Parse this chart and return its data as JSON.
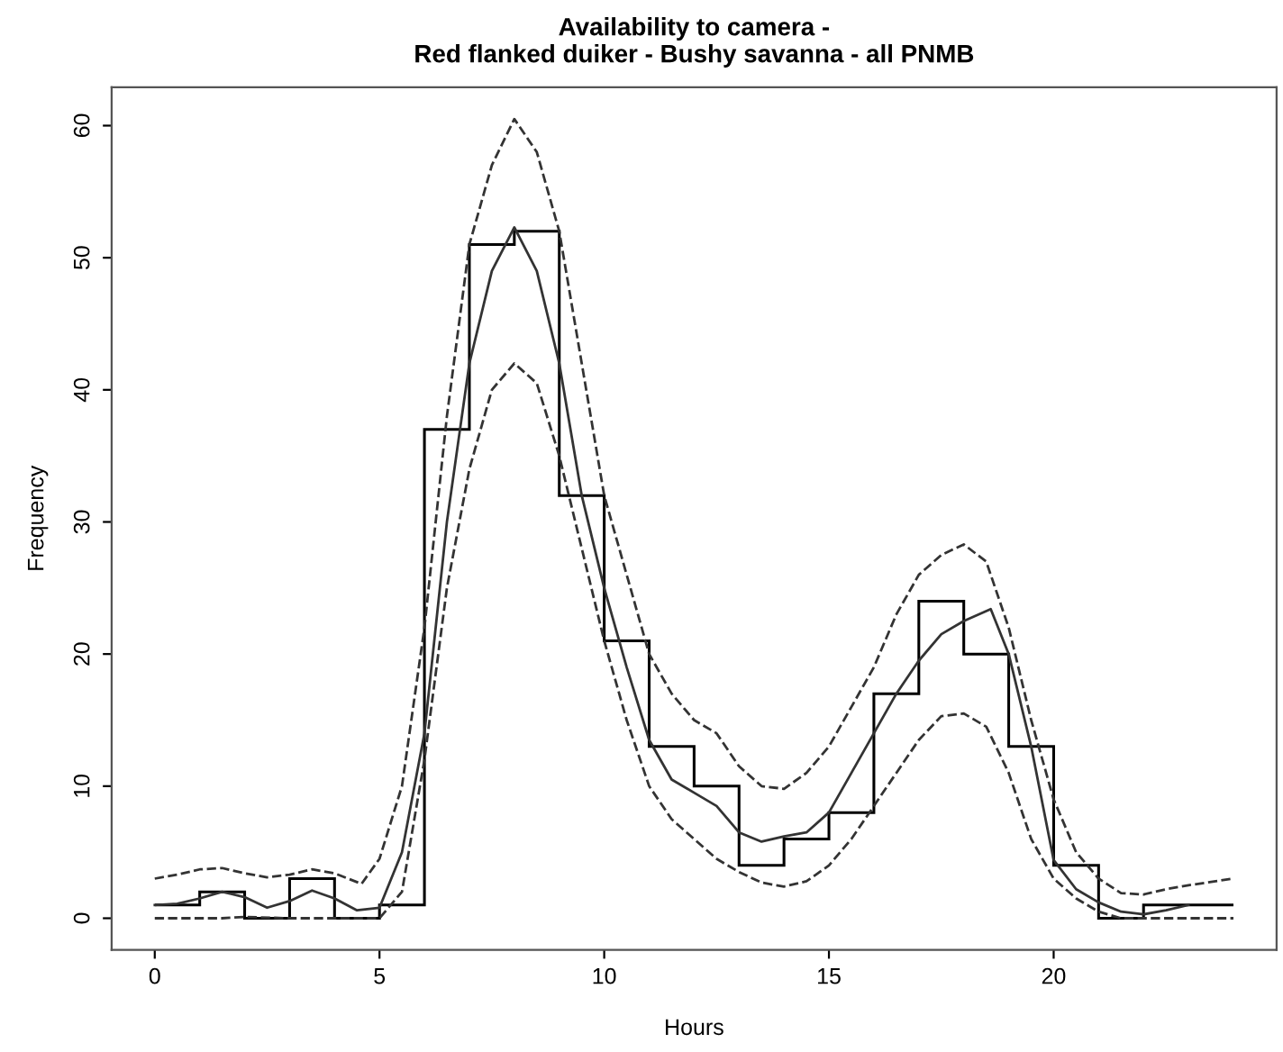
{
  "chart_data": {
    "type": "line",
    "title": "Availability to camera -\nRed flanked duiker - Bushy savanna - all PNMB",
    "xlabel": "Hours",
    "ylabel": "Frequency",
    "xlim": [
      -0.96,
      24.96
    ],
    "ylim": [
      -2.4,
      62.9
    ],
    "xticks": [
      0,
      5,
      10,
      15,
      20
    ],
    "yticks": [
      0,
      10,
      20,
      30,
      40,
      50,
      60
    ],
    "grid": false,
    "legend": false,
    "series": [
      {
        "type": "histogram",
        "color": "#000000",
        "bins": [
          0,
          1,
          2,
          3,
          4,
          5,
          6,
          7,
          8,
          9,
          10,
          11,
          12,
          13,
          14,
          15,
          16,
          17,
          18,
          19,
          20,
          21,
          22,
          23,
          24
        ],
        "values": [
          1,
          2,
          0,
          3,
          0,
          1,
          37,
          51,
          52,
          32,
          21,
          13,
          10,
          4,
          6,
          8,
          17,
          24,
          20,
          13,
          4,
          0,
          1,
          1
        ]
      },
      {
        "color": "#333333",
        "line_style": "solid",
        "x": [
          0,
          0.5,
          1,
          1.5,
          2,
          2.5,
          3,
          3.5,
          4,
          4.5,
          5,
          5.5,
          6,
          6.5,
          7,
          7.5,
          8,
          8.5,
          9,
          9.5,
          10,
          10.5,
          11,
          11.5,
          12,
          12.5,
          13,
          13.5,
          14,
          14.5,
          15,
          15.5,
          16,
          16.5,
          17,
          17.5,
          18,
          18.6,
          19,
          19.5,
          20,
          20.5,
          21,
          21.5,
          22,
          22.5,
          23
        ],
        "values": [
          1,
          1.1,
          1.5,
          2,
          1.6,
          0.8,
          1.3,
          2.1,
          1.5,
          0.6,
          0.8,
          5,
          14,
          30,
          42,
          49,
          52.3,
          49,
          42,
          32,
          25,
          19,
          13.5,
          10.5,
          9.5,
          8.5,
          6.5,
          5.8,
          6.2,
          6.5,
          8,
          11,
          14,
          17,
          19.5,
          21.5,
          22.5,
          23.4,
          20,
          13,
          4.4,
          2.2,
          1.2,
          0.5,
          0.3,
          0.6,
          1
        ]
      },
      {
        "color": "#333333",
        "line_style": "dashed",
        "x": [
          0,
          0.5,
          1,
          1.5,
          2,
          2.5,
          3,
          3.5,
          4,
          4.6,
          5,
          5.5,
          6,
          6.5,
          7,
          7.5,
          8,
          8.5,
          9,
          9.5,
          10,
          10.5,
          11,
          11.5,
          12,
          12.5,
          13,
          13.5,
          14,
          14.5,
          15,
          15.5,
          16,
          16.5,
          17,
          17.5,
          18,
          18.5,
          19,
          19.5,
          20,
          20.5,
          21,
          21.5,
          22,
          22.5,
          23,
          24
        ],
        "values": [
          3,
          3.3,
          3.7,
          3.8,
          3.4,
          3.1,
          3.3,
          3.7,
          3.4,
          2.6,
          4.5,
          10,
          22,
          38,
          51,
          57,
          60.5,
          58,
          52,
          42,
          32,
          26,
          20,
          17,
          15,
          14,
          11.5,
          10,
          9.8,
          11,
          13,
          16,
          19,
          23,
          26,
          27.5,
          28.3,
          27,
          22,
          15,
          9,
          5,
          3,
          1.9,
          1.8,
          2.2,
          2.5,
          3
        ]
      },
      {
        "color": "#333333",
        "line_style": "dashed",
        "x": [
          0,
          1,
          1.5,
          2,
          3,
          4,
          5,
          5.5,
          6,
          6.5,
          7,
          7.5,
          8,
          8.5,
          9,
          9.5,
          10,
          10.5,
          11,
          11.5,
          12,
          12.5,
          13,
          13.5,
          14,
          14.5,
          15,
          15.5,
          16,
          16.5,
          17,
          17.5,
          18,
          18.5,
          19,
          19.5,
          20,
          20.5,
          21,
          21.5,
          22,
          23,
          24
        ],
        "values": [
          0,
          0,
          0,
          0.1,
          0,
          0,
          0,
          2,
          12,
          25,
          34,
          40,
          42,
          40.5,
          35,
          28,
          21,
          15,
          10,
          7.5,
          6,
          4.5,
          3.5,
          2.7,
          2.4,
          2.8,
          4,
          6,
          8.5,
          11,
          13.5,
          15.3,
          15.5,
          14.5,
          11,
          6,
          3,
          1.5,
          0.5,
          0,
          0,
          0,
          0
        ]
      }
    ]
  }
}
